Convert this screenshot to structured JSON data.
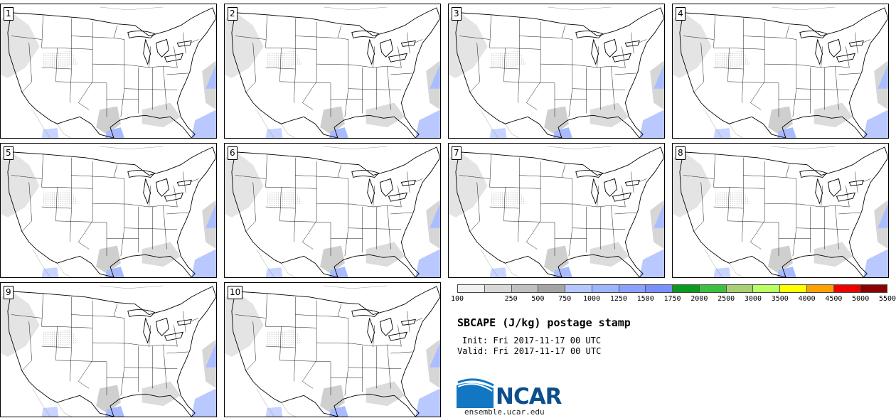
{
  "product": {
    "title": "SBCAPE (J/kg) postage stamp",
    "init_line": "Init: Fri 2017-11-17 00 UTC",
    "valid_line": "Valid: Fri 2017-11-17 00 UTC"
  },
  "members": [
    {
      "label": "1"
    },
    {
      "label": "2"
    },
    {
      "label": "3"
    },
    {
      "label": "4"
    },
    {
      "label": "5"
    },
    {
      "label": "6"
    },
    {
      "label": "7"
    },
    {
      "label": "8"
    },
    {
      "label": "9"
    },
    {
      "label": "10"
    }
  ],
  "colorbar": {
    "colors": [
      "#f0f0f0",
      "#d8d8d8",
      "#c0c0c0",
      "#a4a4a4",
      "#b4c8ff",
      "#9eb4ff",
      "#8ca0ff",
      "#7890ff",
      "#0a9a20",
      "#3cc040",
      "#a8d070",
      "#b8ff60",
      "#ffff00",
      "#ffa000",
      "#ee0000",
      "#8c0000"
    ],
    "ticks": [
      "100",
      "250",
      "500",
      "750",
      "1000",
      "1250",
      "1500",
      "1750",
      "2000",
      "2500",
      "3000",
      "3500",
      "4000",
      "4500",
      "5000",
      "5500"
    ]
  },
  "logo": {
    "name": "NCAR",
    "url": "ensemble.ucar.edu"
  }
}
